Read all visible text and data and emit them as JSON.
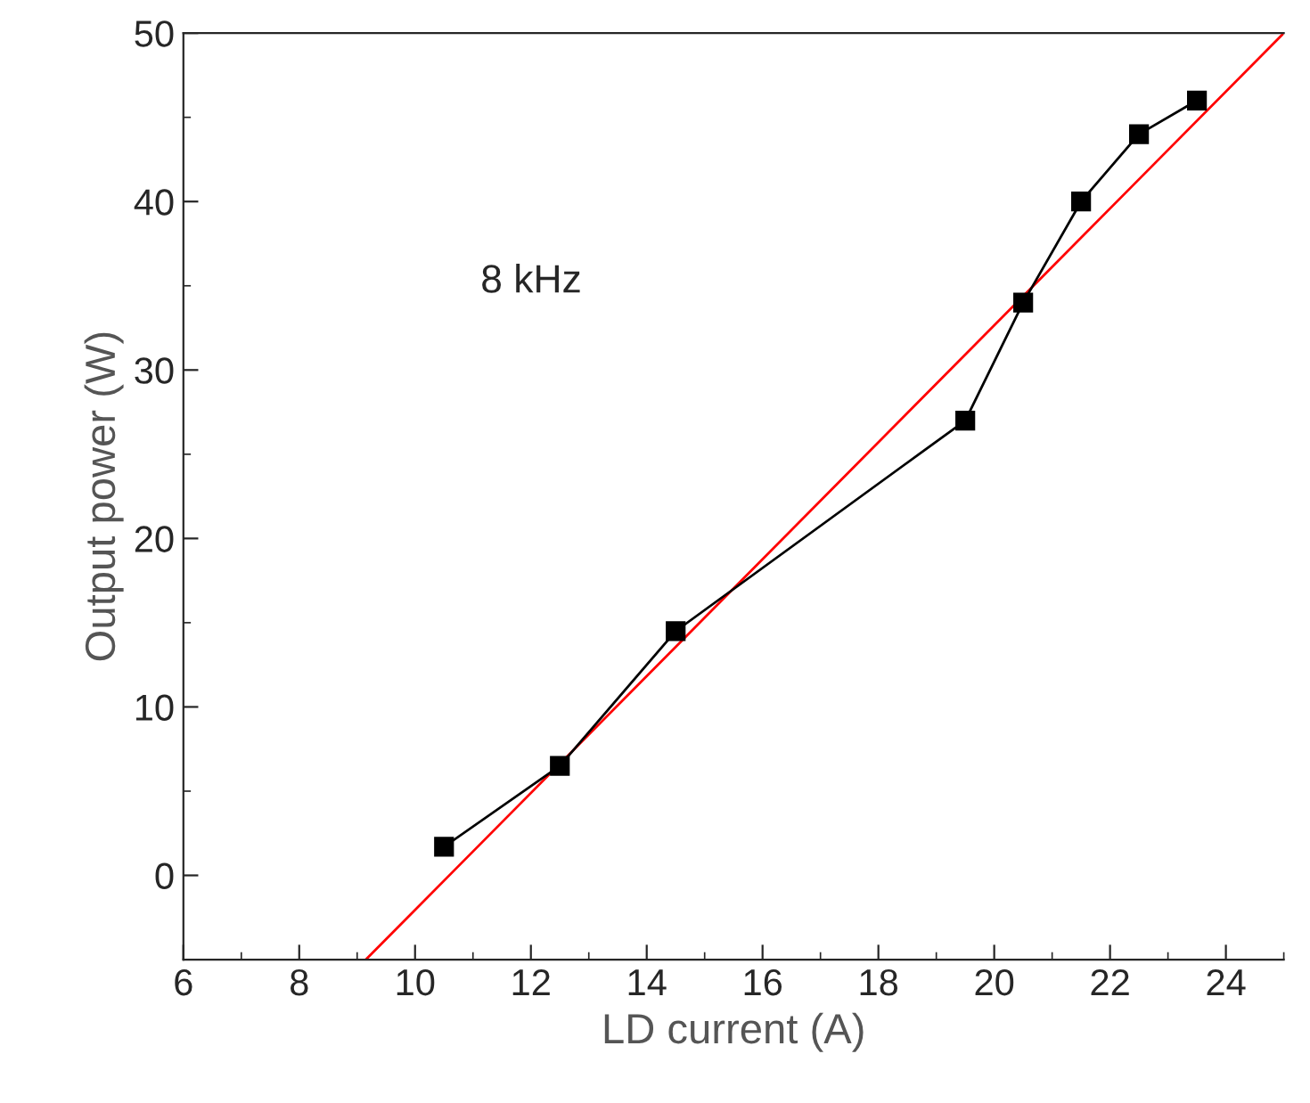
{
  "chart_data": {
    "type": "line",
    "xlabel": "LD current (A)",
    "ylabel": "Output power (W)",
    "annotations": [
      "8 kHz"
    ],
    "xlim": [
      6,
      25
    ],
    "xticks": [
      6,
      8,
      10,
      12,
      14,
      16,
      18,
      20,
      22,
      24
    ],
    "ylim": [
      -5,
      50
    ],
    "yticks": [
      0,
      10,
      20,
      30,
      40,
      50
    ],
    "series": [
      {
        "color": "#000000",
        "marker": "square",
        "x": [
          10.5,
          12.5,
          14.5,
          19.5,
          20.5,
          21.5,
          22.5,
          23.5
        ],
        "values": [
          1.7,
          6.5,
          14.5,
          27,
          34,
          40,
          44,
          46
        ]
      },
      {
        "color": "#ff0000",
        "marker": "none",
        "x": [
          9.15,
          25
        ],
        "values": [
          -5,
          50
        ]
      }
    ]
  }
}
